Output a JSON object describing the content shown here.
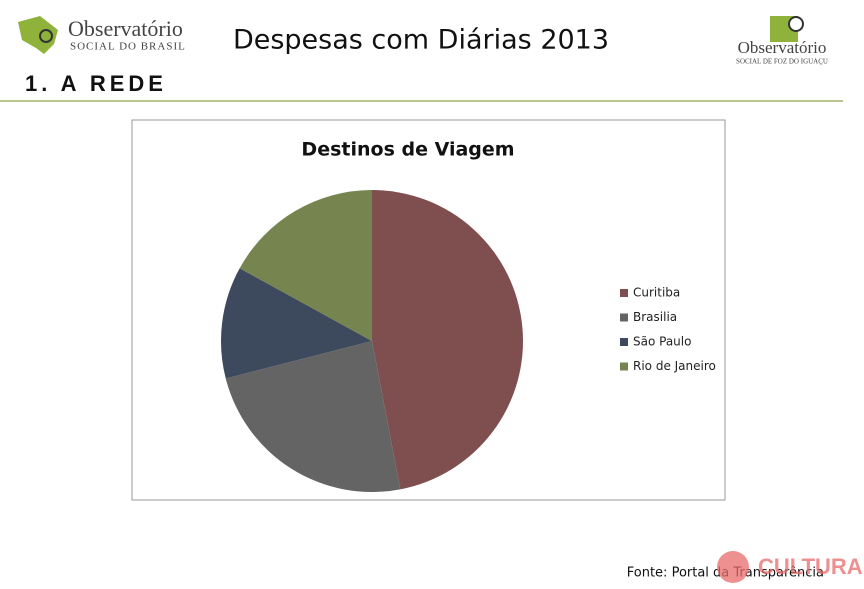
{
  "header": {
    "logo_left": {
      "name": "Observatório",
      "subtitle": "SOCIAL DO BRASIL"
    },
    "title": "Despesas com Diárias 2013",
    "logo_right": {
      "name": "Observatório",
      "subtitle": "SOCIAL DE FOZ DO IGUAÇU"
    }
  },
  "section": "1. A REDE",
  "chart_data": {
    "type": "pie",
    "title": "Destinos de Viagem",
    "categories": [
      "Curitiba",
      "Brasilia",
      "São Paulo",
      "Rio de Janeiro"
    ],
    "values": [
      47,
      24,
      12,
      17
    ],
    "colors": [
      "#7f4f4f",
      "#646464",
      "#3d4a5e",
      "#76854f"
    ],
    "legend": "right"
  },
  "source": "Fonte: Portal da Transparência",
  "watermark": "CULTURA"
}
